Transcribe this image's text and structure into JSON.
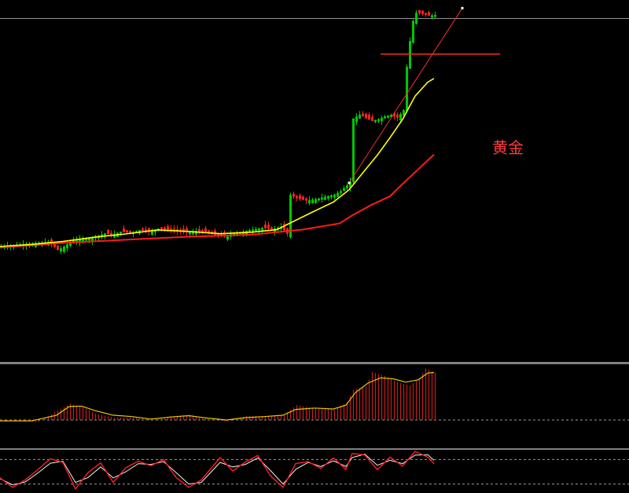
{
  "chart_label": "黄金",
  "colors": {
    "background": "#000000",
    "bull_candle": "#00c800",
    "bear_candle": "#ff2020",
    "ma_short": "#ffff00",
    "ma_long": "#ff1a1a",
    "osc_bars": "#c81e1e",
    "osc_line": "#e6c800",
    "stoch_main": "#ff2020",
    "stoch_signal": "#f0f0f0",
    "panel_divider": "#808080",
    "level_line": "#909090",
    "annotation": "#ff2a2a"
  },
  "chart_data": [
    {
      "type": "candlestick",
      "panel": "price",
      "ylim": [
        0,
        100
      ],
      "xlim": [
        0,
        200
      ],
      "candles_x": [
        0,
        138
      ],
      "closes": [
        [
          0,
          5.2
        ],
        [
          5,
          5.8
        ],
        [
          10,
          6.3
        ],
        [
          15,
          6.9
        ],
        [
          18,
          3.6
        ],
        [
          20,
          5.0
        ],
        [
          23,
          7.6
        ],
        [
          25,
          8.1
        ],
        [
          28,
          8.2
        ],
        [
          30,
          9.1
        ],
        [
          33,
          10.2
        ],
        [
          35,
          9.6
        ],
        [
          38,
          10.9
        ],
        [
          41,
          10.4
        ],
        [
          44,
          11.5
        ],
        [
          47,
          10.8
        ],
        [
          50,
          12.1
        ],
        [
          53,
          11.5
        ],
        [
          56,
          11.0
        ],
        [
          59,
          10.6
        ],
        [
          62,
          11.2
        ],
        [
          65,
          10.4
        ],
        [
          68,
          9.6
        ],
        [
          71,
          9.0
        ],
        [
          74,
          10.5
        ],
        [
          77,
          11.0
        ],
        [
          80,
          11.8
        ],
        [
          83,
          12.4
        ],
        [
          86,
          11.9
        ],
        [
          89,
          12.8
        ],
        [
          91,
          10.1
        ],
        [
          92,
          25.5
        ],
        [
          94,
          24.2
        ],
        [
          97,
          23.3
        ],
        [
          100,
          23.9
        ],
        [
          103,
          24.8
        ],
        [
          106,
          25.7
        ],
        [
          108,
          27.1
        ],
        [
          110,
          29.4
        ],
        [
          111,
          30.9
        ],
        [
          112,
          56.0
        ],
        [
          114,
          57.5
        ],
        [
          116,
          56.1
        ],
        [
          118,
          55.0
        ],
        [
          120,
          55.7
        ],
        [
          122,
          56.8
        ],
        [
          124,
          57.4
        ],
        [
          126,
          56.3
        ],
        [
          128,
          59.3
        ],
        [
          129,
          76.5
        ],
        [
          130,
          86.8
        ],
        [
          131,
          94.8
        ],
        [
          132,
          98.0
        ],
        [
          134,
          97.5
        ],
        [
          136,
          96.9
        ],
        [
          138,
          97.2
        ]
      ],
      "ma_short": [
        [
          0,
          5.0
        ],
        [
          10,
          5.8
        ],
        [
          20,
          7.0
        ],
        [
          30,
          8.7
        ],
        [
          40,
          10.0
        ],
        [
          50,
          11.6
        ],
        [
          60,
          11.0
        ],
        [
          70,
          10.1
        ],
        [
          80,
          10.7
        ],
        [
          88,
          11.7
        ],
        [
          93,
          14.8
        ],
        [
          100,
          19.1
        ],
        [
          106,
          22.7
        ],
        [
          111,
          27.6
        ],
        [
          116,
          35.3
        ],
        [
          120,
          41.4
        ],
        [
          124,
          48.3
        ],
        [
          128,
          55.6
        ],
        [
          132,
          64.9
        ],
        [
          136,
          70.4
        ],
        [
          138,
          71.9
        ]
      ],
      "ma_long": [
        [
          0,
          4.6
        ],
        [
          20,
          6.4
        ],
        [
          40,
          7.7
        ],
        [
          60,
          8.9
        ],
        [
          80,
          9.7
        ],
        [
          96,
          11.7
        ],
        [
          108,
          14.2
        ],
        [
          112,
          17.4
        ],
        [
          118,
          21.5
        ],
        [
          124,
          25.0
        ],
        [
          128,
          29.9
        ],
        [
          132,
          34.6
        ],
        [
          138,
          41.6
        ]
      ],
      "support_level": 95.8,
      "trendline": [
        [
          111,
          30.3
        ],
        [
          147,
          99.9
        ]
      ],
      "resistance_line": {
        "x_range": [
          121,
          159
        ],
        "y": 81.6
      }
    },
    {
      "type": "bar",
      "panel": "oscillator",
      "ylim": [
        0,
        100
      ],
      "zero_line": 0,
      "bars": [
        [
          1,
          -3
        ],
        [
          6,
          -2
        ],
        [
          12,
          -4
        ],
        [
          18,
          20
        ],
        [
          22,
          34
        ],
        [
          26,
          27
        ],
        [
          30,
          13
        ],
        [
          36,
          5
        ],
        [
          42,
          5
        ],
        [
          48,
          1
        ],
        [
          54,
          8
        ],
        [
          60,
          11
        ],
        [
          66,
          1
        ],
        [
          72,
          -3
        ],
        [
          78,
          8
        ],
        [
          84,
          8
        ],
        [
          90,
          11
        ],
        [
          94,
          31
        ],
        [
          100,
          24
        ],
        [
          106,
          22
        ],
        [
          110,
          37
        ],
        [
          112,
          63
        ],
        [
          116,
          70
        ],
        [
          118,
          100
        ],
        [
          122,
          92
        ],
        [
          126,
          79
        ],
        [
          130,
          72
        ],
        [
          133,
          87
        ],
        [
          135,
          108
        ],
        [
          138,
          99
        ]
      ],
      "signal_line": [
        [
          0,
          -2
        ],
        [
          10,
          -2
        ],
        [
          18,
          10
        ],
        [
          22,
          28
        ],
        [
          26,
          29
        ],
        [
          30,
          20
        ],
        [
          36,
          10
        ],
        [
          42,
          7
        ],
        [
          48,
          2
        ],
        [
          54,
          6
        ],
        [
          60,
          9
        ],
        [
          66,
          4
        ],
        [
          72,
          0
        ],
        [
          78,
          5
        ],
        [
          84,
          7
        ],
        [
          90,
          10
        ],
        [
          94,
          22
        ],
        [
          100,
          25
        ],
        [
          106,
          23
        ],
        [
          110,
          31
        ],
        [
          113,
          57
        ],
        [
          117,
          77
        ],
        [
          121,
          88
        ],
        [
          125,
          86
        ],
        [
          129,
          79
        ],
        [
          133,
          84
        ],
        [
          136,
          98
        ],
        [
          138,
          99
        ]
      ]
    },
    {
      "type": "line",
      "panel": "stochastic",
      "ylim": [
        0,
        100
      ],
      "levels": [
        80,
        20
      ],
      "series": [
        {
          "values": [
            [
              0,
              35
            ],
            [
              4,
              12
            ],
            [
              8,
              30
            ],
            [
              12,
              55
            ],
            [
              16,
              82
            ],
            [
              20,
              73
            ],
            [
              24,
              8
            ],
            [
              28,
              48
            ],
            [
              32,
              72
            ],
            [
              36,
              24
            ],
            [
              40,
              60
            ],
            [
              44,
              76
            ],
            [
              48,
              65
            ],
            [
              52,
              80
            ],
            [
              56,
              36
            ],
            [
              60,
              12
            ],
            [
              64,
              30
            ],
            [
              70,
              85
            ],
            [
              74,
              52
            ],
            [
              78,
              74
            ],
            [
              82,
              90
            ],
            [
              86,
              40
            ],
            [
              90,
              12
            ],
            [
              94,
              70
            ],
            [
              98,
              75
            ],
            [
              102,
              58
            ],
            [
              106,
              84
            ],
            [
              110,
              56
            ],
            [
              112,
              95
            ],
            [
              116,
              91
            ],
            [
              120,
              55
            ],
            [
              124,
              86
            ],
            [
              128,
              64
            ],
            [
              132,
              100
            ],
            [
              136,
              86
            ],
            [
              138,
              70
            ]
          ]
        },
        {
          "values": [
            [
              0,
              33
            ],
            [
              4,
              18
            ],
            [
              8,
              25
            ],
            [
              12,
              47
            ],
            [
              16,
              71
            ],
            [
              20,
              76
            ],
            [
              24,
              24
            ],
            [
              28,
              36
            ],
            [
              32,
              62
            ],
            [
              36,
              35
            ],
            [
              40,
              50
            ],
            [
              44,
              70
            ],
            [
              48,
              68
            ],
            [
              52,
              75
            ],
            [
              56,
              48
            ],
            [
              60,
              20
            ],
            [
              64,
              24
            ],
            [
              70,
              73
            ],
            [
              74,
              62
            ],
            [
              78,
              68
            ],
            [
              82,
              84
            ],
            [
              86,
              53
            ],
            [
              90,
              20
            ],
            [
              94,
              56
            ],
            [
              98,
              73
            ],
            [
              102,
              63
            ],
            [
              106,
              77
            ],
            [
              110,
              63
            ],
            [
              112,
              85
            ],
            [
              116,
              93
            ],
            [
              120,
              66
            ],
            [
              124,
              78
            ],
            [
              128,
              70
            ],
            [
              132,
              91
            ],
            [
              136,
              92
            ],
            [
              138,
              78
            ]
          ]
        }
      ]
    }
  ]
}
